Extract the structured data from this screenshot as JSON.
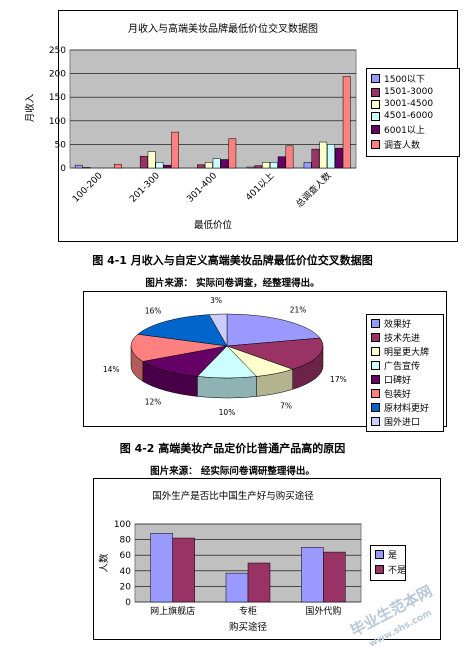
{
  "charts": [
    {
      "type": "bar",
      "title": "月收入与高端美妆品牌最低价位交叉数据图",
      "ylabel": "月收入",
      "xlabel": "最低价位",
      "ylim": [
        0,
        250
      ],
      "yticks": [
        0,
        50,
        100,
        150,
        200,
        250
      ],
      "categories": [
        "100-200",
        "201-300",
        "301-400",
        "401以上",
        "总调查人数"
      ],
      "series": [
        {
          "name": "1500以下",
          "color": "#9999ff",
          "values": [
            6,
            0,
            0,
            2,
            12
          ]
        },
        {
          "name": "1501-3000",
          "color": "#993366",
          "values": [
            1,
            25,
            7,
            5,
            40
          ]
        },
        {
          "name": "3001-4500",
          "color": "#ffffcc",
          "values": [
            0,
            35,
            12,
            12,
            55
          ]
        },
        {
          "name": "4501-6000",
          "color": "#ccffff",
          "values": [
            0,
            12,
            20,
            12,
            50
          ]
        },
        {
          "name": "6001以上",
          "color": "#660066",
          "values": [
            0,
            6,
            18,
            24,
            42
          ]
        },
        {
          "name": "调查人数",
          "color": "#ff8080",
          "values": [
            8,
            76,
            62,
            47,
            194
          ]
        }
      ],
      "grid": true,
      "legend": "right"
    },
    {
      "type": "pie",
      "labels": [
        "效果好",
        "技术先进",
        "明星更大牌",
        "广告宣传",
        "口碑好",
        "包装好",
        "原材料更好",
        "国外进口"
      ],
      "values": [
        21,
        17,
        7,
        10,
        12,
        14,
        16,
        3
      ],
      "value_labels": [
        "21%",
        "17%",
        "7%",
        "10%",
        "12%",
        "14%",
        "16%",
        "3%"
      ],
      "colors": [
        "#9999ff",
        "#993366",
        "#ffffcc",
        "#ccffff",
        "#660066",
        "#ff8080",
        "#0066cc",
        "#ccccff"
      ],
      "legend": "right"
    },
    {
      "type": "bar",
      "title": "国外生产是否比中国生产好与购买途径",
      "ylabel": "人数",
      "xlabel": "购买途径",
      "ylim": [
        0,
        100
      ],
      "yticks": [
        0,
        20,
        40,
        60,
        80,
        100
      ],
      "categories": [
        "网上旗舰店",
        "专柜",
        "国外代购"
      ],
      "series": [
        {
          "name": "是",
          "color": "#9999ff",
          "values": [
            88,
            37,
            70
          ]
        },
        {
          "name": "不是",
          "color": "#993366",
          "values": [
            82,
            50,
            64
          ]
        }
      ],
      "grid": true,
      "legend": "right"
    }
  ],
  "captions": {
    "fig1": "图 4-1   月收入与自定义高端美妆品牌最低价位交叉数据图",
    "fig1_source": "图片来源：    实际问卷调查，经整理得出。",
    "fig2": "图 4-2   高端美妆产品定价比普通产品高的原因",
    "fig2_source": "图片来源：    经实际问卷调研整理得出。"
  },
  "watermark": {
    "main": "毕业生范本网",
    "sub": "www.shs.com"
  }
}
